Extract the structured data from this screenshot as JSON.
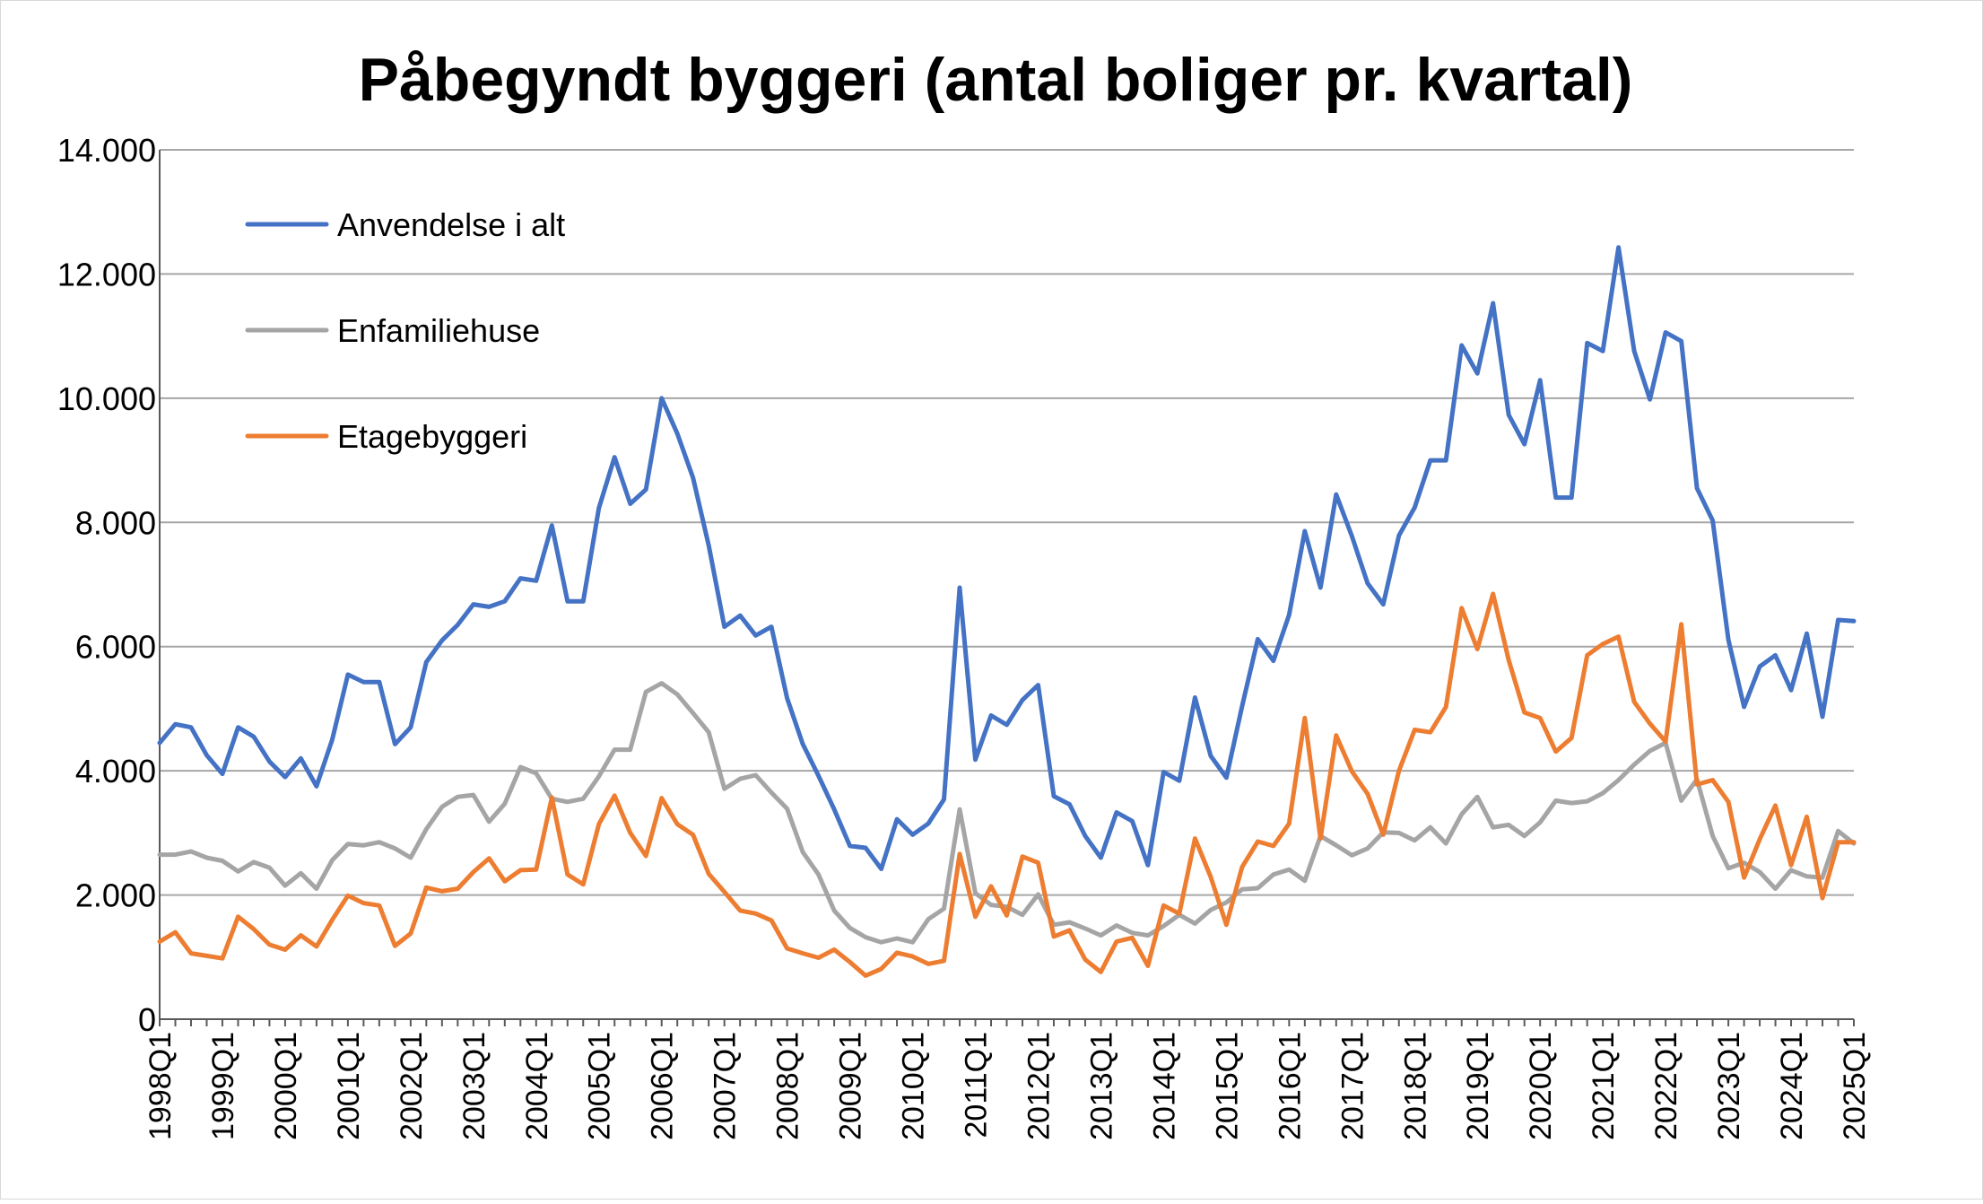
{
  "chart_data": {
    "type": "line",
    "title": "Påbegyndt byggeri (antal boliger pr. kvartal)",
    "xlabel": "",
    "ylabel": "",
    "ylim": [
      0,
      14000
    ],
    "yticks": [
      0,
      2000,
      4000,
      6000,
      8000,
      10000,
      12000,
      14000
    ],
    "ytick_labels": [
      "0",
      "2.000",
      "4.000",
      "6.000",
      "8.000",
      "10.000",
      "12.000",
      "14.000"
    ],
    "xtick_labels": [
      "1998Q1",
      "1999Q1",
      "2000Q1",
      "2001Q1",
      "2002Q1",
      "2003Q1",
      "2004Q1",
      "2005Q1",
      "2006Q1",
      "2007Q1",
      "2008Q1",
      "2009Q1",
      "2010Q1",
      "2011Q1",
      "2012Q1",
      "2013Q1",
      "2014Q1",
      "2015Q1",
      "2016Q1",
      "2017Q1",
      "2018Q1",
      "2019Q1",
      "2020Q1",
      "2021Q1",
      "2022Q1",
      "2023Q1",
      "2024Q1",
      "2025Q1"
    ],
    "grid": true,
    "legend_position": "top-left",
    "series": [
      {
        "name": "Anvendelse i alt",
        "color": "#4472C4",
        "values": [
          4450,
          4750,
          4700,
          4250,
          3950,
          4700,
          4550,
          4150,
          3900,
          4200,
          3750,
          4500,
          5550,
          5430,
          5430,
          4430,
          4700,
          5750,
          6100,
          6350,
          6680,
          6640,
          6730,
          7100,
          7060,
          7950,
          6730,
          6730,
          8230,
          9050,
          8300,
          8530,
          10000,
          9430,
          8720,
          7630,
          6320,
          6500,
          6180,
          6320,
          5170,
          4430,
          3920,
          3380,
          2790,
          2760,
          2420,
          3220,
          2970,
          3150,
          3540,
          6950,
          4180,
          4890,
          4740,
          5140,
          5380,
          3590,
          3460,
          2950,
          2600,
          3330,
          3190,
          2480,
          3980,
          3840,
          5180,
          4240,
          3890,
          5040,
          6120,
          5770,
          6510,
          7860,
          6950,
          8450,
          7780,
          7020,
          6680,
          7790,
          8240,
          9000,
          9000,
          10850,
          10400,
          11530,
          9730,
          9260,
          10290,
          8400,
          8400,
          10890,
          10760,
          12430,
          10760,
          9980,
          11060,
          10920,
          8550,
          8030,
          6110,
          5030,
          5680,
          5860,
          5300,
          6210,
          4870,
          6430,
          6410
        ]
      },
      {
        "name": "Enfamiliehuse",
        "color": "#A5A5A5",
        "values": [
          2650,
          2650,
          2700,
          2600,
          2550,
          2380,
          2530,
          2440,
          2150,
          2350,
          2100,
          2560,
          2820,
          2800,
          2850,
          2750,
          2600,
          3060,
          3420,
          3580,
          3610,
          3180,
          3470,
          4060,
          3960,
          3550,
          3500,
          3550,
          3910,
          4340,
          4340,
          5270,
          5410,
          5230,
          4930,
          4620,
          3710,
          3870,
          3930,
          3650,
          3390,
          2690,
          2330,
          1750,
          1470,
          1320,
          1240,
          1300,
          1240,
          1610,
          1780,
          3380,
          2030,
          1840,
          1810,
          1680,
          2010,
          1520,
          1560,
          1460,
          1350,
          1510,
          1390,
          1350,
          1500,
          1680,
          1540,
          1760,
          1880,
          2090,
          2110,
          2330,
          2410,
          2230,
          2950,
          2800,
          2640,
          2750,
          3010,
          3000,
          2880,
          3090,
          2830,
          3300,
          3580,
          3090,
          3130,
          2950,
          3170,
          3520,
          3480,
          3510,
          3640,
          3850,
          4100,
          4320,
          4450,
          3520,
          3860,
          2950,
          2430,
          2520,
          2370,
          2100,
          2400,
          2300,
          2280,
          3030,
          2830
        ]
      },
      {
        "name": "Etagebyggeri",
        "color": "#ED7D31",
        "values": [
          1250,
          1400,
          1060,
          1020,
          980,
          1650,
          1450,
          1200,
          1120,
          1350,
          1170,
          1600,
          1990,
          1870,
          1830,
          1180,
          1380,
          2120,
          2060,
          2100,
          2370,
          2590,
          2220,
          2400,
          2410,
          3570,
          2330,
          2170,
          3140,
          3600,
          3000,
          2630,
          3560,
          3140,
          2970,
          2340,
          2050,
          1750,
          1700,
          1590,
          1140,
          1060,
          990,
          1120,
          920,
          700,
          810,
          1070,
          1010,
          890,
          940,
          2660,
          1650,
          2140,
          1670,
          2620,
          2520,
          1330,
          1430,
          960,
          760,
          1250,
          1310,
          860,
          1830,
          1700,
          2910,
          2290,
          1520,
          2450,
          2860,
          2790,
          3150,
          4850,
          2910,
          4570,
          3990,
          3630,
          2970,
          4000,
          4660,
          4620,
          5030,
          6620,
          5960,
          6850,
          5780,
          4940,
          4850,
          4310,
          4530,
          5860,
          6040,
          6160,
          5110,
          4760,
          4470,
          6360,
          3780,
          3850,
          3500,
          2280,
          2900,
          3440,
          2480,
          3260,
          1950,
          2850,
          2850
        ]
      }
    ]
  }
}
